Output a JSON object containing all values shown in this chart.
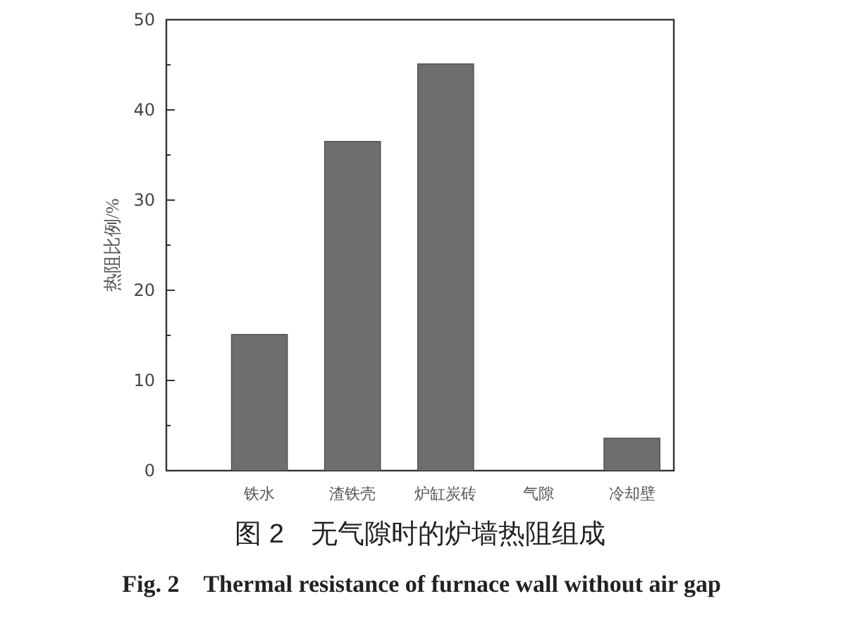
{
  "chart_data": {
    "type": "bar",
    "title": "图 2　无气隙时的炉墙热阻组成",
    "subtitle": "Fig. 2　Thermal resistance of furnace wall without air gap",
    "ylabel": "热阻比例/%",
    "categories": [
      "铁水",
      "渣铁壳",
      "炉缸炭砖",
      "气隙",
      "冷却壁"
    ],
    "values": [
      15.1,
      36.5,
      45.1,
      0,
      3.6
    ],
    "color": "#6e6e6e",
    "ylim": [
      0,
      50
    ],
    "yticks": [
      0,
      10,
      20,
      30,
      40,
      50
    ]
  }
}
